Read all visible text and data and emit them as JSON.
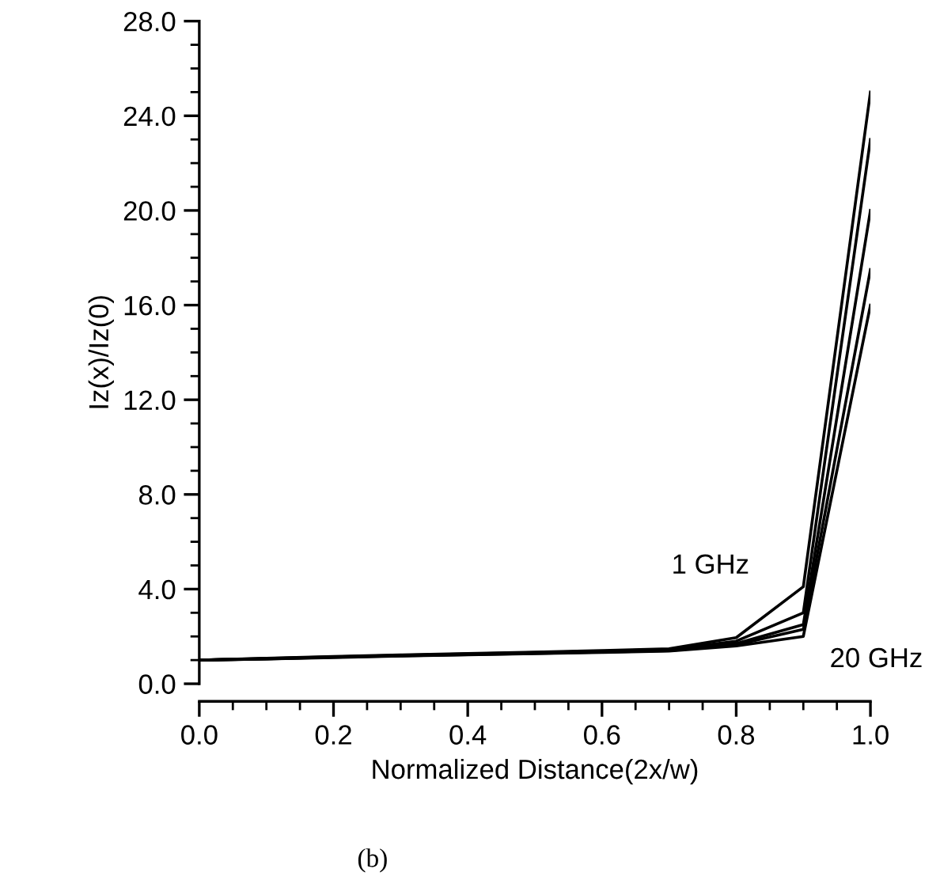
{
  "chart_data": {
    "type": "line",
    "xlabel": "Normalized Distance(2x/w)",
    "ylabel": "Iz(x)/Iz(0)",
    "x": [
      0.0,
      0.1,
      0.2,
      0.3,
      0.4,
      0.5,
      0.6,
      0.7,
      0.8,
      0.9,
      1.0
    ],
    "series": [
      {
        "color": "#000000",
        "values": [
          1.0,
          1.08,
          1.15,
          1.22,
          1.28,
          1.34,
          1.4,
          1.48,
          1.95,
          4.1,
          25.0
        ]
      },
      {
        "color": "#000000",
        "values": [
          1.0,
          1.07,
          1.14,
          1.2,
          1.26,
          1.32,
          1.38,
          1.45,
          1.8,
          3.0,
          23.0
        ]
      },
      {
        "color": "#000000",
        "values": [
          1.0,
          1.06,
          1.13,
          1.19,
          1.25,
          1.3,
          1.36,
          1.42,
          1.7,
          2.5,
          20.0
        ]
      },
      {
        "color": "#000000",
        "values": [
          1.0,
          1.05,
          1.12,
          1.18,
          1.23,
          1.28,
          1.34,
          1.4,
          1.65,
          2.3,
          17.5
        ]
      },
      {
        "color": "#000000",
        "values": [
          1.0,
          1.05,
          1.11,
          1.17,
          1.22,
          1.27,
          1.32,
          1.38,
          1.6,
          2.0,
          16.0
        ]
      }
    ],
    "xlim": [
      0.0,
      1.0
    ],
    "ylim": [
      0.0,
      28.0
    ],
    "xticks": [
      {
        "value": 0.0,
        "label": "0.0"
      },
      {
        "value": 0.2,
        "label": "0.2"
      },
      {
        "value": 0.4,
        "label": "0.4"
      },
      {
        "value": 0.6,
        "label": "0.6"
      },
      {
        "value": 0.8,
        "label": "0.8"
      },
      {
        "value": 1.0,
        "label": "1.0"
      }
    ],
    "yticks": [
      {
        "value": 0,
        "label": "0.0"
      },
      {
        "value": 4,
        "label": "4.0"
      },
      {
        "value": 8,
        "label": "8.0"
      },
      {
        "value": 12,
        "label": "12.0"
      },
      {
        "value": 16,
        "label": "16.0"
      },
      {
        "value": 20,
        "label": "20.0"
      },
      {
        "value": 24,
        "label": "24.0"
      },
      {
        "value": 28,
        "label": "28.0"
      }
    ],
    "annotations": [
      {
        "text": "1 GHz",
        "x": 0.9,
        "y": 4.1
      },
      {
        "text": "20 GHz",
        "x": 0.9,
        "y": 2.0
      },
      "(b)"
    ],
    "grid": false,
    "legend": false,
    "marker": "none",
    "line_style": "solid"
  }
}
